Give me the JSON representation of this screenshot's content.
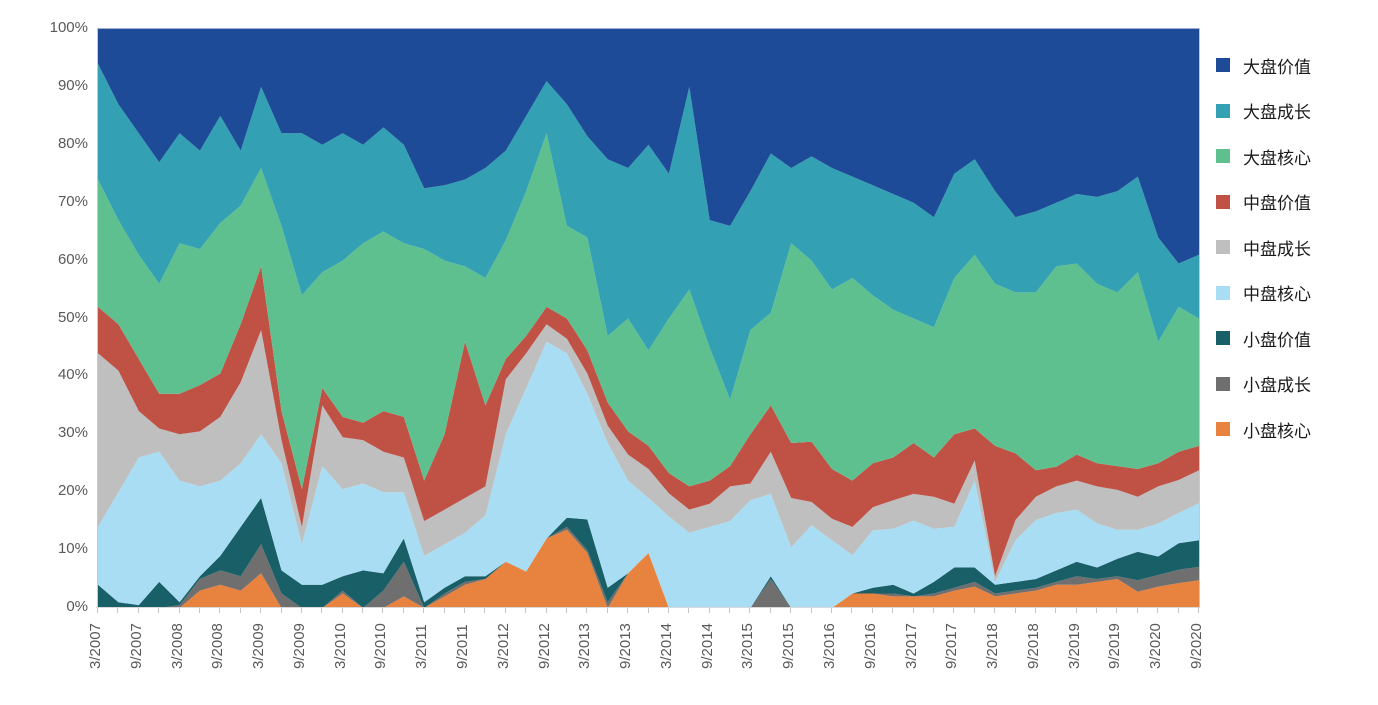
{
  "chart_data": {
    "type": "area",
    "subtype": "stacked-100-percent",
    "title": "",
    "xlabel": "",
    "ylabel": "",
    "ylim": [
      0,
      100
    ],
    "grid": false,
    "legend_position": "right",
    "stacking": "last-series-at-bottom",
    "x": [
      "3/2007",
      "6/2007",
      "9/2007",
      "12/2007",
      "3/2008",
      "6/2008",
      "9/2008",
      "12/2008",
      "3/2009",
      "6/2009",
      "9/2009",
      "12/2009",
      "3/2010",
      "6/2010",
      "9/2010",
      "12/2010",
      "3/2011",
      "6/2011",
      "9/2011",
      "12/2011",
      "3/2012",
      "6/2012",
      "9/2012",
      "12/2012",
      "3/2013",
      "6/2013",
      "9/2013",
      "12/2013",
      "3/2014",
      "6/2014",
      "9/2014",
      "12/2014",
      "3/2015",
      "6/2015",
      "9/2015",
      "12/2015",
      "3/2016",
      "6/2016",
      "9/2016",
      "12/2016",
      "3/2017",
      "6/2017",
      "9/2017",
      "12/2017",
      "3/2018",
      "6/2018",
      "9/2018",
      "12/2018",
      "3/2019",
      "6/2019",
      "9/2019",
      "12/2019",
      "3/2020",
      "6/2020",
      "9/2020"
    ],
    "x_tick_step": 2,
    "x_tick_labels": [
      "3/2007",
      "9/2007",
      "3/2008",
      "9/2008",
      "3/2009",
      "9/2009",
      "3/2010",
      "9/2010",
      "3/2011",
      "9/2011",
      "3/2012",
      "9/2012",
      "3/2013",
      "9/2013",
      "3/2014",
      "9/2014",
      "3/2015",
      "9/2015",
      "3/2016",
      "9/2016",
      "3/2017",
      "9/2017",
      "3/2018",
      "9/2018",
      "3/2019",
      "9/2019",
      "3/2020",
      "9/2020"
    ],
    "y_tick_labels": [
      "0%",
      "10%",
      "20%",
      "30%",
      "40%",
      "50%",
      "60%",
      "70%",
      "80%",
      "90%",
      "100%"
    ],
    "series": [
      {
        "name": "大盘价值",
        "color": "#1d4b97",
        "values": [
          6,
          13,
          18,
          23,
          18,
          21,
          15,
          21,
          10,
          18,
          18,
          20,
          18,
          20,
          17,
          20,
          27.5,
          27,
          26,
          24,
          21,
          15,
          9,
          13,
          18.5,
          22.5,
          24,
          20,
          25,
          10,
          33,
          34,
          28,
          21.5,
          24,
          22,
          24,
          25.5,
          27,
          28.5,
          30,
          32.5,
          25,
          22.5,
          28,
          32.5,
          31.5,
          30,
          28.5,
          29,
          28,
          25.5,
          36,
          40.5,
          39
        ]
      },
      {
        "name": "大盘成长",
        "color": "#33a0b3",
        "values": [
          20,
          20,
          21,
          21,
          19,
          17,
          18.5,
          9.5,
          14,
          16,
          28,
          22,
          22,
          17,
          18,
          17,
          10.5,
          13,
          15,
          19,
          15.5,
          13,
          9,
          21,
          17.5,
          30.5,
          26,
          35.5,
          25,
          35,
          22,
          30,
          24,
          27.5,
          13,
          18,
          21,
          17.5,
          19,
          20,
          20,
          19,
          18,
          16.5,
          16,
          13,
          14,
          11,
          12,
          15,
          17.5,
          16.5,
          18,
          7.5,
          11
        ]
      },
      {
        "name": "大盘核心",
        "color": "#5ec08f",
        "values": [
          22,
          18,
          18,
          19,
          26,
          23.5,
          26,
          20.5,
          17,
          32,
          33.5,
          20,
          27,
          31,
          31,
          30,
          40,
          30,
          13,
          22,
          20.5,
          25,
          30,
          16,
          19.5,
          11.5,
          19.5,
          16.5,
          26.7,
          34,
          23,
          11.5,
          18,
          16,
          34.5,
          31.3,
          31,
          35,
          29,
          25.5,
          21.5,
          22.5,
          27,
          30,
          28,
          27.8,
          30.7,
          34.6,
          33,
          31,
          30,
          34,
          21,
          25,
          22
        ]
      },
      {
        "name": "中盘价值",
        "color": "#bf5245",
        "values": [
          8,
          8,
          9,
          6,
          7,
          8,
          7.5,
          10,
          11,
          5,
          6.5,
          3,
          3.5,
          3,
          7,
          7,
          7,
          13,
          27,
          14,
          3.5,
          3,
          3,
          3.5,
          4,
          4,
          4,
          4,
          3.5,
          4,
          4,
          3.5,
          8.5,
          8,
          9.5,
          10.4,
          8.6,
          8,
          7.6,
          7.4,
          8.8,
          6.8,
          12,
          5.5,
          22.5,
          11.5,
          4.6,
          3.4,
          4.5,
          4,
          4.1,
          4.8,
          4,
          4.9,
          4.2
        ]
      },
      {
        "name": "中盘成长",
        "color": "#bfbfbf",
        "values": [
          30,
          21,
          8,
          4,
          8,
          9.5,
          11,
          14,
          18,
          4,
          3,
          10.5,
          9,
          7.5,
          7,
          6,
          6,
          6,
          6,
          5,
          9.5,
          6,
          3,
          2.5,
          3.5,
          3,
          4.5,
          5,
          4,
          4,
          4,
          6,
          2.9,
          7.3,
          8.5,
          4,
          3.7,
          4.9,
          4,
          4.9,
          4.6,
          5.5,
          4,
          3.5,
          1,
          3.5,
          4,
          4.6,
          5,
          6.4,
          6.9,
          5.7,
          6.4,
          5.7,
          5.7
        ]
      },
      {
        "name": "中盘核心",
        "color": "#a9ddf3",
        "values": [
          10,
          19,
          25.5,
          22.5,
          21,
          15.5,
          13,
          11,
          11,
          18.5,
          7,
          20.5,
          15,
          15,
          14,
          8,
          8,
          7.5,
          7.5,
          10.5,
          22,
          31.7,
          34,
          28.4,
          21.7,
          25,
          16,
          9.5,
          15.8,
          13,
          14,
          15,
          18.6,
          14.2,
          10.5,
          14.3,
          11.7,
          6.6,
          9.9,
          9.7,
          12.6,
          9.2,
          7,
          15,
          0.5,
          7.2,
          10.2,
          9.9,
          9,
          7.6,
          5,
          3.8,
          5.7,
          5.2,
          6.4
        ]
      },
      {
        "name": "小盘价值",
        "color": "#195f68",
        "values": [
          4,
          1,
          0.5,
          4.5,
          0.5,
          0.5,
          2.5,
          8.5,
          8,
          4,
          4,
          4,
          2.5,
          6.5,
          3,
          4,
          1,
          1,
          1,
          0.5,
          0,
          0,
          0,
          1.6,
          5.3,
          2.5,
          0,
          0,
          0,
          0,
          0,
          0,
          0,
          0.5,
          0,
          0,
          0,
          0,
          1,
          1.5,
          0.5,
          2,
          3.5,
          2.5,
          1.5,
          1.5,
          1.5,
          2,
          2.5,
          2,
          3,
          4.9,
          3.2,
          4.6,
          4.6
        ]
      },
      {
        "name": "小盘成长",
        "color": "#6f6f6f",
        "values": [
          0,
          0,
          0,
          0,
          0.5,
          2,
          2.5,
          2.5,
          5,
          2.5,
          0,
          0,
          0.5,
          0,
          3,
          6,
          0,
          0.5,
          0.5,
          0,
          0,
          0,
          0,
          0.5,
          0.5,
          1,
          0,
          0,
          0,
          0,
          0,
          0,
          0,
          5,
          0,
          0,
          0,
          0,
          0,
          0.5,
          0,
          0.5,
          0.5,
          0.8,
          0.5,
          0.5,
          0.5,
          0.5,
          1.5,
          0.5,
          0.5,
          2,
          2,
          2.3,
          2.3
        ]
      },
      {
        "name": "小盘核心",
        "color": "#e8823f",
        "values": [
          0,
          0,
          0,
          0,
          0,
          3,
          4,
          3,
          6,
          0,
          0,
          0,
          2.5,
          0,
          0,
          2,
          0,
          2,
          4,
          5,
          8,
          6.3,
          12,
          13.5,
          9.5,
          0,
          6,
          9.5,
          0,
          0,
          0,
          0,
          0,
          0,
          0,
          0,
          0,
          2.5,
          2.5,
          2,
          2,
          2,
          3,
          3.7,
          2,
          2.5,
          3,
          4,
          4,
          4.5,
          5,
          2.8,
          3.7,
          4.3,
          4.8
        ]
      }
    ]
  },
  "layout_colors": {
    "background": "#ffffff",
    "axis_text": "#595959",
    "legend_text": "#1a1a1a",
    "plot_border": "#a7aed2",
    "axis_line": "#d8d8d8",
    "tick": "#c6c6c6"
  }
}
